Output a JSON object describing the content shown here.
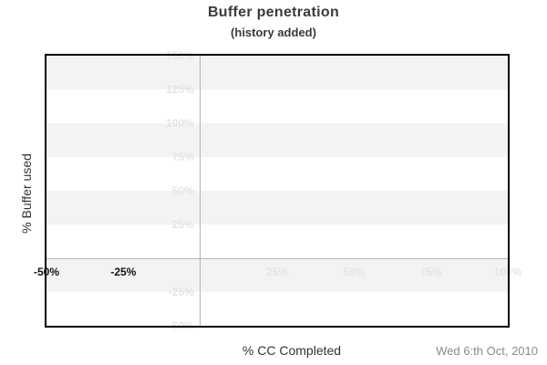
{
  "header": {
    "title": "Buffer penetration",
    "subtitle": "(history added)"
  },
  "footer": {
    "date": "Wed 6:th Oct, 2010"
  },
  "colors": {
    "background": "#ffffff",
    "band_gray": "#f3f3f3",
    "band_white": "#ffffff",
    "muted_label": "#e4e4e4",
    "dark_label": "#111111",
    "zero_line": "#b3b3b3",
    "plot_border": "#000000",
    "title_text": "#3a3a3a",
    "axis_text": "#333333",
    "date_text": "#8a8a8a"
  },
  "chart_data": {
    "type": "line",
    "title": "Buffer penetration",
    "subtitle": "(history added)",
    "xlabel": "% CC Completed",
    "ylabel": "% Buffer used",
    "xlim": [
      -50,
      100
    ],
    "ylim": [
      -50,
      150
    ],
    "series": [],
    "zero_lines": {
      "vertical_at_x": 0,
      "horizontal_at_y": 0
    },
    "x_ticks": [
      {
        "value": -50,
        "label": "-50%",
        "style": "dark"
      },
      {
        "value": -25,
        "label": "-25%",
        "style": "dark"
      },
      {
        "value": 25,
        "label": "25%",
        "style": "muted"
      },
      {
        "value": 50,
        "label": "50%",
        "style": "muted"
      },
      {
        "value": 75,
        "label": "75%",
        "style": "muted"
      },
      {
        "value": 100,
        "label": "100%",
        "style": "muted"
      }
    ],
    "y_ticks": [
      {
        "value": 150,
        "label": "150%",
        "style": "muted"
      },
      {
        "value": 125,
        "label": "125%",
        "style": "muted"
      },
      {
        "value": 100,
        "label": "100%",
        "style": "muted"
      },
      {
        "value": 75,
        "label": "75%",
        "style": "muted"
      },
      {
        "value": 50,
        "label": "50%",
        "style": "muted"
      },
      {
        "value": 25,
        "label": "25%",
        "style": "muted"
      },
      {
        "value": -25,
        "label": "-25%",
        "style": "muted"
      },
      {
        "value": -50,
        "label": "-50%",
        "style": "muted"
      }
    ],
    "bands": [
      {
        "from": 150,
        "to": 125,
        "shade": "gray"
      },
      {
        "from": 125,
        "to": 100,
        "shade": "white"
      },
      {
        "from": 100,
        "to": 75,
        "shade": "gray"
      },
      {
        "from": 75,
        "to": 50,
        "shade": "white"
      },
      {
        "from": 50,
        "to": 25,
        "shade": "gray"
      },
      {
        "from": 25,
        "to": 0,
        "shade": "white"
      },
      {
        "from": 0,
        "to": -25,
        "shade": "gray"
      },
      {
        "from": -25,
        "to": -50,
        "shade": "white"
      }
    ]
  }
}
